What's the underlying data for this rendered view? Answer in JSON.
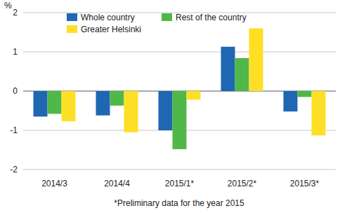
{
  "chart_data": {
    "type": "bar",
    "y_label": "%",
    "footnote": "*Preliminary data for the year 2015",
    "categories": [
      "2014/3",
      "2014/4",
      "2015/1*",
      "2015/2*",
      "2015/3*"
    ],
    "series": [
      {
        "name": "Whole country",
        "color": "#1f66b3",
        "values": [
          -0.65,
          -0.62,
          -1.0,
          1.13,
          -0.52
        ]
      },
      {
        "name": "Rest of the country",
        "color": "#4fb848",
        "values": [
          -0.58,
          -0.37,
          -1.48,
          0.84,
          -0.15
        ]
      },
      {
        "name": "Greater Helsinki",
        "color": "#fde025",
        "values": [
          -0.77,
          -1.05,
          -0.22,
          1.6,
          -1.13
        ]
      }
    ],
    "ylim": [
      -2,
      2
    ],
    "yticks": [
      -2,
      -1,
      0,
      1,
      2
    ],
    "grid": true,
    "legend": "top"
  }
}
